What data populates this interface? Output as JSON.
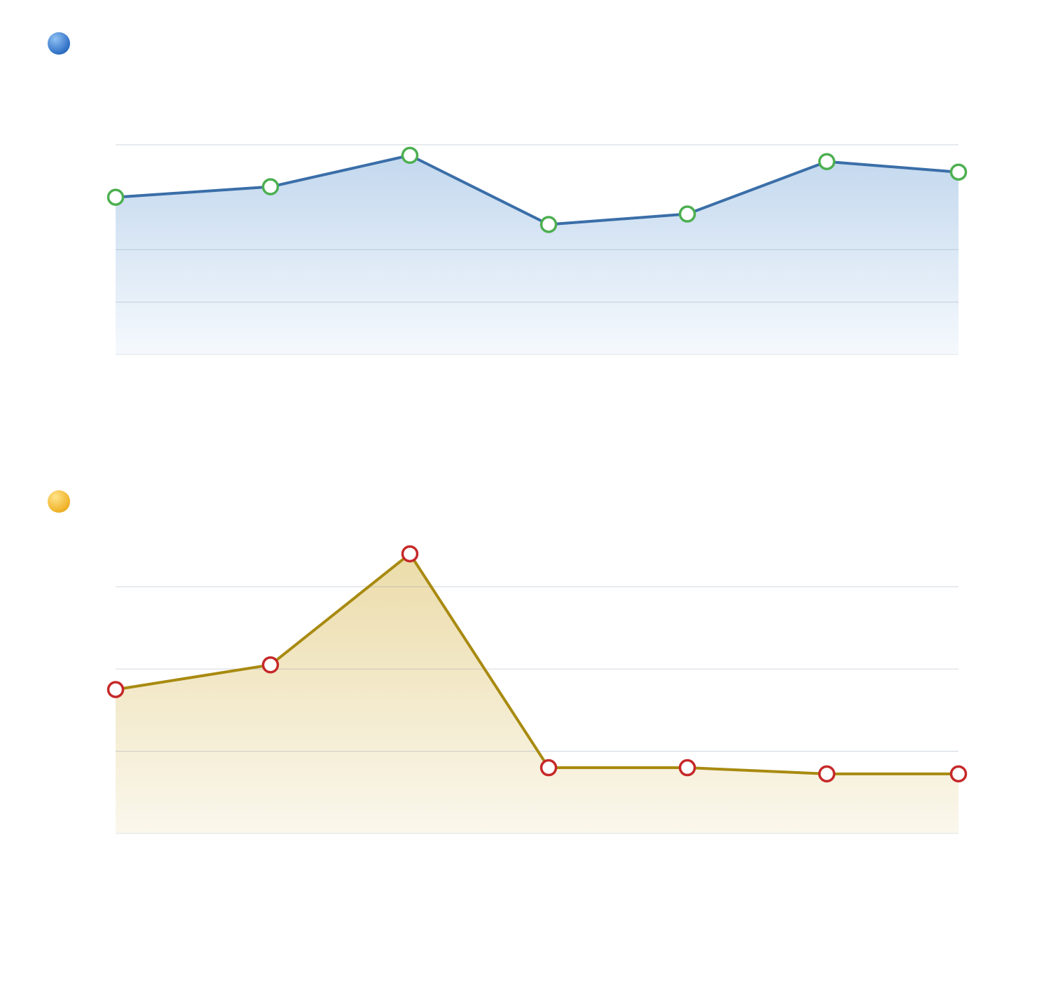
{
  "chart_data": [
    {
      "type": "area",
      "title": "",
      "marker_color": "#4a8fd9",
      "line_color": "#3a6ea8",
      "point_color": "#4caf50",
      "fill_top": "#c3d8ee",
      "fill_bottom": "#f5f9fd",
      "series": [
        {
          "values": [
            75,
            80,
            95,
            62,
            67,
            92,
            87
          ]
        }
      ],
      "ylim": [
        0,
        125
      ],
      "gridlines": [
        25,
        50,
        100
      ],
      "grid": true
    },
    {
      "type": "area",
      "title": "",
      "marker_color": "#f1b82d",
      "line_color": "#a88a10",
      "point_color": "#c62828",
      "fill_top": "#ecdcaa",
      "fill_bottom": "#faf7ec",
      "series": [
        {
          "values": [
            35,
            41,
            68,
            16,
            16,
            14.5,
            14.5
          ]
        }
      ],
      "ylim": [
        0,
        70
      ],
      "gridlines": [
        20,
        40,
        60
      ],
      "grid": true
    }
  ]
}
